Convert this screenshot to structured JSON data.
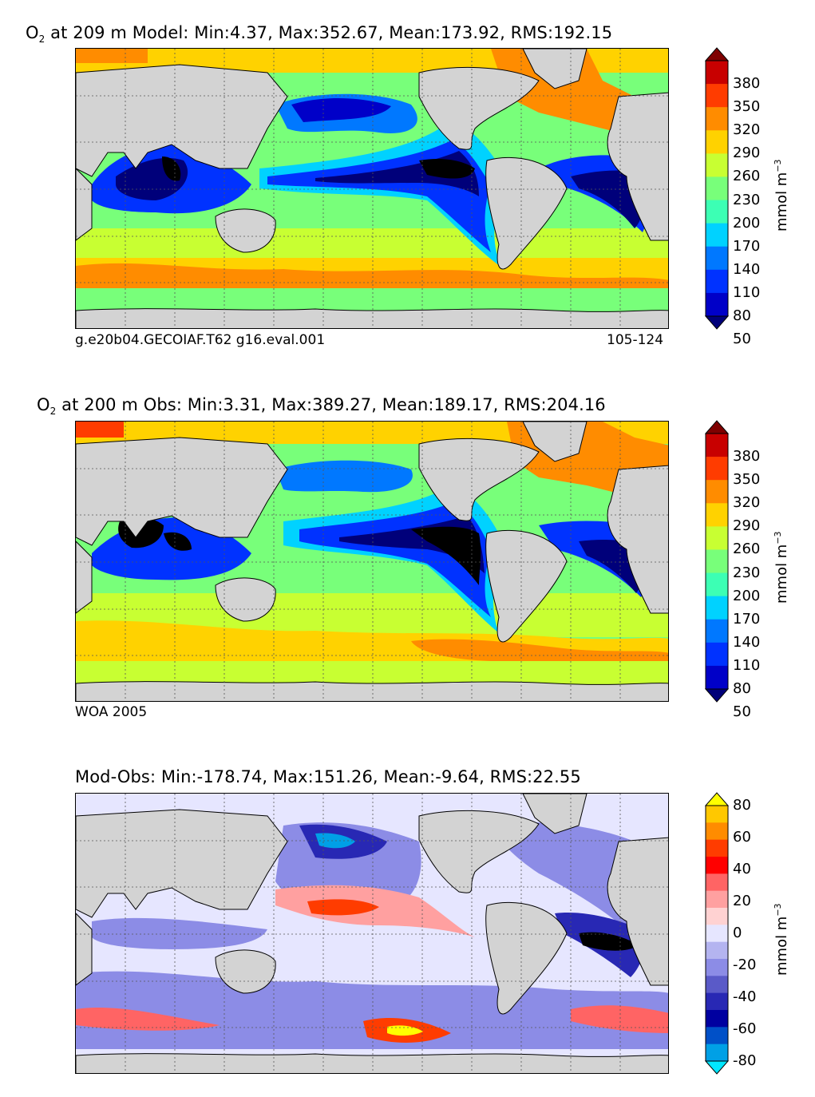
{
  "panels": [
    {
      "id": "model",
      "title_prefix": "O",
      "title_sub": "2",
      "title_rest": " at 209 m Model: Min:4.37, Max:352.67, Mean:173.92, RMS:192.15",
      "left_note": "g.e20b04.GECOIAF.T62 g16.eval.001",
      "right_note": "105-124",
      "colorbar": {
        "unit": "mmol m",
        "unit_sup": "−3",
        "ticks": [
          "380",
          "350",
          "320",
          "290",
          "260",
          "230",
          "200",
          "170",
          "140",
          "110",
          "80",
          "50"
        ],
        "colors_top_to_bottom": [
          "#7f0000",
          "#c80000",
          "#ff3c00",
          "#ff8c00",
          "#ffd200",
          "#c8ff32",
          "#78ff7a",
          "#3cffb4",
          "#00d2ff",
          "#0078ff",
          "#0032ff",
          "#0000c8",
          "#00007a"
        ]
      }
    },
    {
      "id": "obs",
      "title_prefix": "O",
      "title_sub": "2",
      "title_rest": " at 200 m Obs: Min:3.31, Max:389.27, Mean:189.17, RMS:204.16",
      "left_note": "WOA 2005",
      "right_note": "",
      "colorbar": {
        "unit": "mmol m",
        "unit_sup": "−3",
        "ticks": [
          "380",
          "350",
          "320",
          "290",
          "260",
          "230",
          "200",
          "170",
          "140",
          "110",
          "80",
          "50"
        ],
        "colors_top_to_bottom": [
          "#7f0000",
          "#c80000",
          "#ff3c00",
          "#ff8c00",
          "#ffd200",
          "#c8ff32",
          "#78ff7a",
          "#3cffb4",
          "#00d2ff",
          "#0078ff",
          "#0032ff",
          "#0000c8",
          "#00007a"
        ]
      }
    },
    {
      "id": "diff",
      "title_prefix": "",
      "title_sub": "",
      "title_rest": "Mod-Obs: Min:-178.74, Max:151.26, Mean:-9.64, RMS:22.55",
      "left_note": "",
      "right_note": "",
      "colorbar": {
        "unit": "mmol m",
        "unit_sup": "−3",
        "ticks": [
          "80",
          "60",
          "40",
          "20",
          "0",
          "-20",
          "-40",
          "-60",
          "-80"
        ],
        "colors_top_to_bottom": [
          "#ffff00",
          "#ffc800",
          "#ff8c00",
          "#ff3c00",
          "#ff0000",
          "#ff6464",
          "#ffa0a0",
          "#ffd2d2",
          "#e6e6ff",
          "#b4b4f0",
          "#8c8ce6",
          "#5a5ac8",
          "#2828b4",
          "#0000a0",
          "#0050c8",
          "#00a0e6",
          "#00e6ff"
        ]
      }
    }
  ],
  "colors": {
    "land": "#d3d3d3",
    "coast": "#000000",
    "grid": "#555555"
  }
}
